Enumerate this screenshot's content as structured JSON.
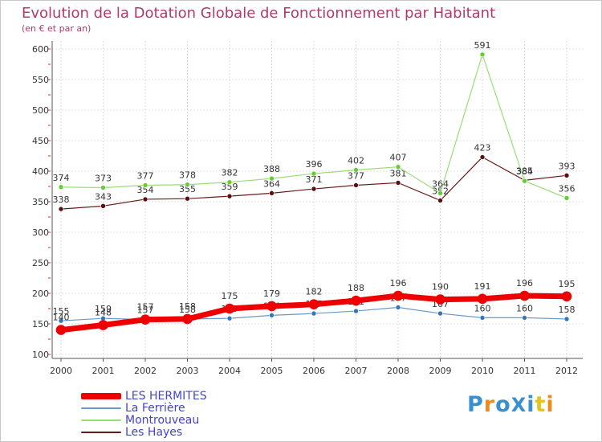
{
  "title": "Evolution de la Dotation Globale de Fonctionnement par Habitant",
  "subtitle": "(en € et par an)",
  "logo": "ProXiti",
  "colors": {
    "title": "#b03a6a",
    "axis": "#333333",
    "grid": "#dddddd",
    "legend_text": "#4444cc"
  },
  "chart_data": {
    "type": "line",
    "title": "Evolution de la Dotation Globale de Fonctionnement par Habitant",
    "subtitle": "(en € et par an)",
    "xlabel": "",
    "ylabel": "",
    "ylim": [
      100,
      600
    ],
    "yticks": [
      100,
      150,
      200,
      250,
      300,
      350,
      400,
      450,
      500,
      550,
      600
    ],
    "x": [
      "2000",
      "2001",
      "2002",
      "2003",
      "2004",
      "2005",
      "2006",
      "2007",
      "2008",
      "2009",
      "2010",
      "2011",
      "2012"
    ],
    "grid": true,
    "legend_position": "bottom-left",
    "series": [
      {
        "name": "Les Hayes",
        "color": "#6b1a1a",
        "marker": "#5a1010",
        "width": 1.2,
        "radius": 3,
        "values": [
          338,
          343,
          354,
          355,
          359,
          364,
          371,
          377,
          381,
          352,
          423,
          385,
          393
        ]
      },
      {
        "name": "Montrouveau",
        "color": "#99dd77",
        "marker": "#66cc33",
        "width": 1.2,
        "radius": 3,
        "values": [
          374,
          373,
          377,
          378,
          382,
          388,
          396,
          402,
          407,
          364,
          591,
          384,
          356
        ]
      },
      {
        "name": "La Ferrière",
        "color": "#6699cc",
        "marker": "#3377bb",
        "width": 1.2,
        "radius": 3,
        "values": [
          155,
          159,
          157,
          158,
          159,
          164,
          167,
          171,
          177,
          167,
          160,
          160,
          158
        ]
      },
      {
        "name": "LES HERMITES",
        "color": "#ee0000",
        "marker": "#ee0000",
        "width": 7,
        "radius": 6,
        "values": [
          140,
          148,
          157,
          158,
          175,
          179,
          182,
          188,
          196,
          190,
          191,
          196,
          195
        ]
      }
    ],
    "legend_order": [
      "LES HERMITES",
      "La Ferrière",
      "Montrouveau",
      "Les Hayes"
    ]
  }
}
